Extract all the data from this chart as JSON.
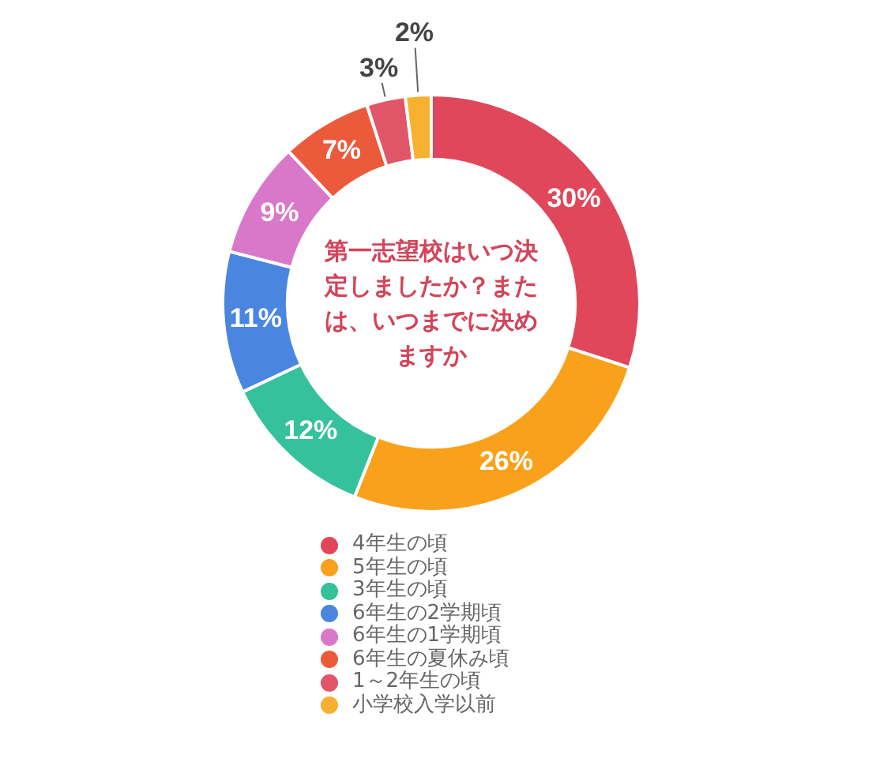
{
  "chart_data": {
    "type": "donut",
    "title": "第一志望校はいつ決定しましたか？または、いつまでに決めますか",
    "categories": [
      "4年生の頃",
      "5年生の頃",
      "3年生の頃",
      "6年生の2学期頃",
      "6年生の1学期頃",
      "6年生の夏休み頃",
      "1～2年生の頃",
      "小学校入学以前"
    ],
    "values": [
      30,
      26,
      12,
      11,
      9,
      7,
      3,
      2
    ],
    "value_labels": [
      "30%",
      "26%",
      "12%",
      "11%",
      "9%",
      "7%",
      "3%",
      "2%"
    ],
    "colors": [
      "#e0475a",
      "#f9a11b",
      "#35c19b",
      "#4a86e0",
      "#d978c8",
      "#ec5a3c",
      "#e05668",
      "#f8b030"
    ],
    "legend": "bottom"
  }
}
